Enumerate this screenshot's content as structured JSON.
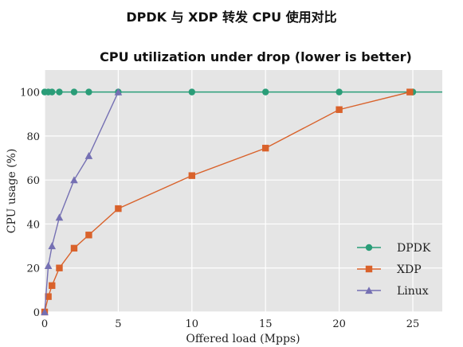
{
  "page": {
    "title": "DPDK 与 XDP 转发 CPU 使用对比"
  },
  "chart_data": {
    "type": "line",
    "title": "CPU utilization under drop (lower is better)",
    "xlabel": "Offered load (Mpps)",
    "ylabel": "CPU usage (%)",
    "xlim": [
      0,
      27
    ],
    "ylim": [
      0,
      110
    ],
    "xticks": [
      0,
      5,
      10,
      15,
      20,
      25
    ],
    "yticks": [
      0,
      20,
      40,
      60,
      80,
      100
    ],
    "grid": true,
    "legend_position": "bottom-right",
    "series": [
      {
        "name": "DPDK",
        "color": "#2a9d78",
        "marker": "circle",
        "x": [
          0,
          0.25,
          0.5,
          1,
          2,
          3,
          5,
          10,
          15,
          20,
          25
        ],
        "y": [
          100,
          100,
          100,
          100,
          100,
          100,
          100,
          100,
          100,
          100,
          100
        ],
        "line_extends_to_axis_end": true
      },
      {
        "name": "XDP",
        "color": "#d9622b",
        "marker": "square",
        "x": [
          0,
          0.25,
          0.5,
          1,
          2,
          3,
          5,
          10,
          15,
          20,
          24.8
        ],
        "y": [
          0,
          7,
          12,
          20,
          29,
          35,
          47,
          62,
          74.5,
          92,
          100
        ]
      },
      {
        "name": "Linux",
        "color": "#7570b3",
        "marker": "triangle",
        "x": [
          0,
          0.25,
          0.5,
          1,
          2,
          3,
          5
        ],
        "y": [
          0,
          21,
          30,
          43,
          60,
          71,
          100
        ]
      }
    ]
  }
}
